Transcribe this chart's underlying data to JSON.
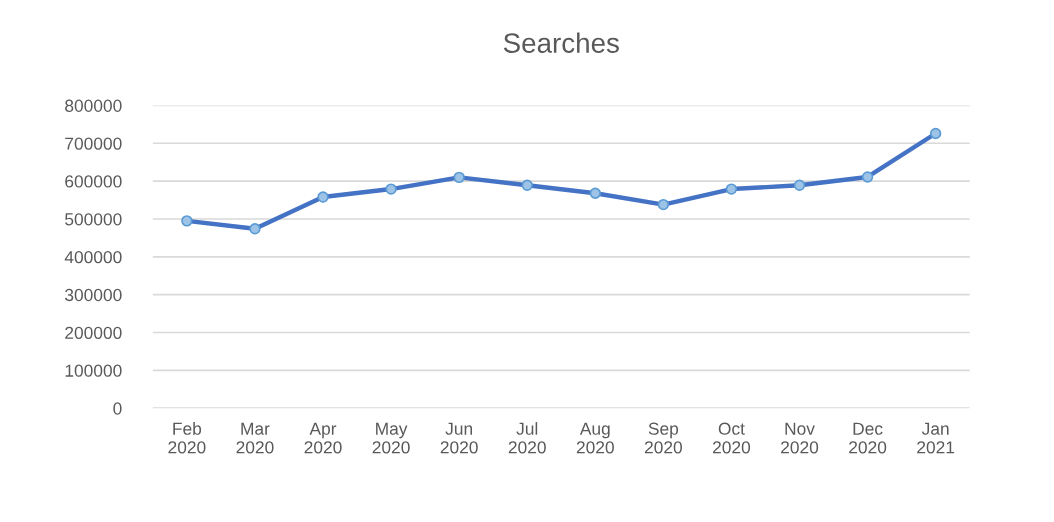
{
  "chart_data": {
    "type": "line",
    "title": "Searches",
    "categories": [
      "Feb\n2020",
      "Mar\n2020",
      "Apr\n2020",
      "May\n2020",
      "Jun\n2020",
      "Jul\n2020",
      "Aug\n2020",
      "Sep\n2020",
      "Oct\n2020",
      "Nov\n2020",
      "Dec\n2020",
      "Jan\n2021"
    ],
    "series": [
      {
        "color": "#4472c4",
        "values": [
          495000,
          474000,
          558000,
          579000,
          610000,
          589000,
          568000,
          538000,
          579000,
          589000,
          611000,
          726000
        ]
      }
    ],
    "ylim": [
      0,
      800000
    ],
    "yticks": [
      0,
      100000,
      200000,
      300000,
      400000,
      500000,
      600000,
      700000,
      800000
    ],
    "grid": "y",
    "marker": "circle",
    "line_style": "solid",
    "legend": false
  }
}
